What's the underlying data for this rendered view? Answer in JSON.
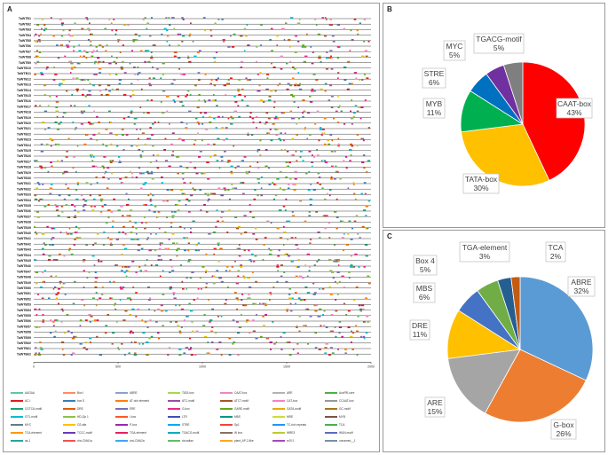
{
  "panels": {
    "a_label": "A",
    "b_label": "B",
    "c_label": "C"
  },
  "motif_map": {
    "genes": [
      "TaWTB1",
      "TaWTB2",
      "TaWTB3",
      "TaWTB4",
      "TaWTB5",
      "TaWTB6",
      "TaWTB7",
      "TaWTB8",
      "TaWTB9",
      "TaWTB10",
      "TaWTB11",
      "TaWTB12",
      "TaWTB13",
      "TaWTB14",
      "TaWTB15",
      "TaWTB16",
      "TaWTB17",
      "TaWTB18",
      "TaWTB19",
      "TaWTB20",
      "TaWTB21",
      "TaWTB22",
      "TaWTB23",
      "TaWTB24",
      "TaWTB25",
      "TaWTB26",
      "TaWTB27",
      "TaWTB28",
      "TaWTB29",
      "TaWTB30",
      "TaWTB31",
      "TaWTB32",
      "TaWTB33",
      "TaWTB34",
      "TaWTB35",
      "TaWTB36",
      "TaWTB37",
      "TaWTB38",
      "TaWTB39",
      "TaWTB40",
      "TaWTB41",
      "TaWTB42",
      "TaWTB43",
      "TaWTB44",
      "TaWTB45",
      "TaWTB46",
      "TaWTB47",
      "TaWTB48",
      "TaWTB49",
      "TaWTB50",
      "TaWTB51",
      "TaWTB52",
      "TaWTB53",
      "TaWTB54",
      "TaWTB55",
      "TaWTB56",
      "TaWTB57",
      "TaWTB58",
      "TaWTB59",
      "TaWTB60",
      "TaWTB61",
      "TaWTB62"
    ],
    "axis_ticks": [
      "0",
      "500",
      "1000",
      "1500",
      "2000"
    ],
    "axis_range": [
      0,
      2000
    ],
    "motif_colors": [
      "#e41a1c",
      "#377eb8",
      "#4daf4a",
      "#984ea3",
      "#ff7f00",
      "#e6c300",
      "#a65628",
      "#f781bf",
      "#1b9e77",
      "#d95f02",
      "#7570b3",
      "#e7298a",
      "#66a61e",
      "#00bcd4",
      "#8bc34a",
      "#c51b7d"
    ],
    "legend": [
      {
        "label": "AAGAA",
        "color": "#66c2a5"
      },
      {
        "label": "Box I",
        "color": "#fc8d62"
      },
      {
        "label": "ABRE",
        "color": "#8da0cb"
      },
      {
        "label": "TATA-box",
        "color": "#a6d854"
      },
      {
        "label": "CAAT-box",
        "color": "#e78ac3"
      },
      {
        "label": "ARE",
        "color": "#b3b3b3"
      },
      {
        "label": "AuxRR-core",
        "color": "#4daf4a"
      },
      {
        "label": "AC-I",
        "color": "#e41a1c"
      },
      {
        "label": "box S",
        "color": "#377eb8"
      },
      {
        "label": "AT-rich element",
        "color": "#ff7f00"
      },
      {
        "label": "ATC-motif",
        "color": "#984ea3"
      },
      {
        "label": "ATCT-motif",
        "color": "#a65628"
      },
      {
        "label": "CAT-box",
        "color": "#f781bf"
      },
      {
        "label": "CCAAT-box",
        "color": "#999999"
      },
      {
        "label": "CGTCA-motif",
        "color": "#1b9e77"
      },
      {
        "label": "DRE",
        "color": "#d95f02"
      },
      {
        "label": "ERE",
        "color": "#7570b3"
      },
      {
        "label": "G-box",
        "color": "#e7298a"
      },
      {
        "label": "GARE-motif",
        "color": "#66a61e"
      },
      {
        "label": "GATA-motif",
        "color": "#e6ab02"
      },
      {
        "label": "GC-motif",
        "color": "#a6761d"
      },
      {
        "label": "GT1-motif",
        "color": "#00bcd4"
      },
      {
        "label": "HD-Zip 1",
        "color": "#8bc34a"
      },
      {
        "label": "I-box",
        "color": "#ff5722"
      },
      {
        "label": "LTR",
        "color": "#3f51b5"
      },
      {
        "label": "MBS",
        "color": "#009688"
      },
      {
        "label": "MRE",
        "color": "#cddc39"
      },
      {
        "label": "MYB",
        "color": "#795548"
      },
      {
        "label": "MYC",
        "color": "#607d8b"
      },
      {
        "label": "O2-site",
        "color": "#ffc107"
      },
      {
        "label": "P-box",
        "color": "#9c27b0"
      },
      {
        "label": "STRE",
        "color": "#03a9f4"
      },
      {
        "label": "Sp1",
        "color": "#f44336"
      },
      {
        "label": "TC-rich repeats",
        "color": "#2196f3"
      },
      {
        "label": "TCA",
        "color": "#4caf50"
      },
      {
        "label": "TCA-element",
        "color": "#ff9800"
      },
      {
        "label": "TCCC-motif",
        "color": "#673ab7"
      },
      {
        "label": "TGA-element",
        "color": "#e91e63"
      },
      {
        "label": "TGACG-motif",
        "color": "#00acc1"
      },
      {
        "label": "W box",
        "color": "#8d6e63"
      },
      {
        "label": "WRE3",
        "color": "#c0ca33"
      },
      {
        "label": "WUN-motif",
        "color": "#5c6bc0"
      },
      {
        "label": "as-1",
        "color": "#26a69a"
      },
      {
        "label": "chs-CMA1a",
        "color": "#ef5350"
      },
      {
        "label": "chs-CMA2a",
        "color": "#42a5f5"
      },
      {
        "label": "circadian",
        "color": "#66bb6a"
      },
      {
        "label": "plant_AP-2-like",
        "color": "#ffa726"
      },
      {
        "label": "re2f-1",
        "color": "#ab47bc"
      },
      {
        "label": "unnamed__1",
        "color": "#78909c"
      }
    ]
  },
  "chart_data": [
    {
      "type": "pie",
      "panel": "B",
      "categories": [
        "CAAT-box",
        "TATA-box",
        "MYB",
        "STRE",
        "MYC",
        "TGACG-motif"
      ],
      "values": [
        43,
        30,
        11,
        6,
        5,
        5
      ],
      "labels": [
        "CAAT-box\n43%",
        "TATA-box\n30%",
        "MYB\n11%",
        "STRE\n6%",
        "MYC\n5%",
        "TGACG-motif\n5%"
      ],
      "label_lines": [
        [
          "CAAT-box",
          "43%"
        ],
        [
          "TATA-box",
          "30%"
        ],
        [
          "MYB",
          "11%"
        ],
        [
          "STRE",
          "6%"
        ],
        [
          "MYC",
          "5%"
        ],
        [
          "TGACG-motif",
          "5%"
        ]
      ],
      "colors": [
        "#ff0000",
        "#ffc000",
        "#00b050",
        "#0070c0",
        "#7030a0",
        "#7f7f7f"
      ]
    },
    {
      "type": "pie",
      "panel": "C",
      "categories": [
        "ABRE",
        "G-box",
        "ARE",
        "DRE",
        "MBS",
        "Box 4",
        "TGA-element",
        "TCA"
      ],
      "values": [
        32,
        26,
        15,
        11,
        6,
        5,
        3,
        2
      ],
      "label_lines": [
        [
          "ABRE",
          "32%"
        ],
        [
          "G-box",
          "26%"
        ],
        [
          "ARE",
          "15%"
        ],
        [
          "DRE",
          "11%"
        ],
        [
          "MBS",
          "6%"
        ],
        [
          "Box 4",
          "5%"
        ],
        [
          "TGA-element",
          "3%"
        ],
        [
          "TCA",
          "2%"
        ]
      ],
      "colors": [
        "#5b9bd5",
        "#ed7d31",
        "#a5a5a5",
        "#ffc000",
        "#4472c4",
        "#70ad47",
        "#255e91",
        "#c55a11"
      ]
    }
  ]
}
